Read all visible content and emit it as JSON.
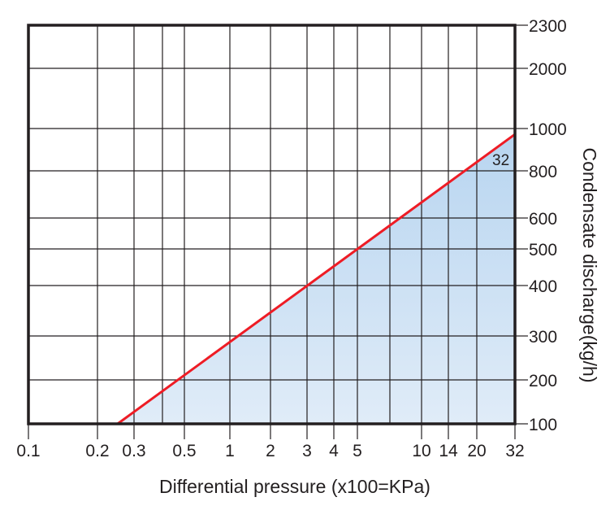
{
  "chart_data": {
    "type": "area",
    "title": "",
    "xlabel": "Differential pressure (x100=KPa)",
    "ylabel": "Condensate discharge(kg/h)",
    "x_ticks": [
      "0.1",
      "0.2",
      "0.3",
      "0.5",
      "1",
      "2",
      "3",
      "4",
      "5",
      "10",
      "14",
      "20",
      "32"
    ],
    "x_grid_values": [
      0.2,
      0.3,
      0.4,
      0.5,
      1,
      2,
      3,
      4,
      5,
      7,
      10,
      14,
      20
    ],
    "y_ticks": [
      "100",
      "200",
      "300",
      "400",
      "500",
      "600",
      "800",
      "1000",
      "2000",
      "2300"
    ],
    "xlim": [
      0.1,
      32
    ],
    "ylim": [
      100,
      2300
    ],
    "grid": true,
    "series": [
      {
        "label": "32",
        "x": [
          0.25,
          32
        ],
        "y": [
          100,
          970
        ],
        "color": "#ee1c25"
      }
    ],
    "fill_colors": [
      "#b8d5f0",
      "#e0ecf8"
    ],
    "axis_color": "#231f20"
  }
}
